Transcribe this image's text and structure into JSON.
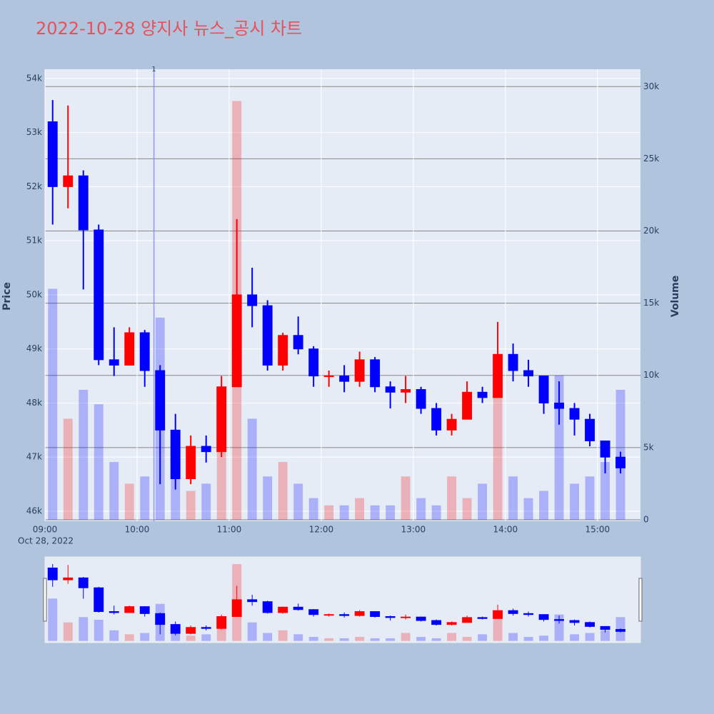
{
  "chart_data": {
    "type": "candlestick",
    "title": "2022-10-28 양지사 뉴스_공시 차트",
    "x_date_label": "Oct 28, 2022",
    "y_title": "Price",
    "y2_title": "Volume",
    "x": [
      "2022-10-28 09:00",
      "2022-10-28 09:10",
      "2022-10-28 09:20",
      "2022-10-28 09:30",
      "2022-10-28 09:40",
      "2022-10-28 09:50",
      "2022-10-28 10:00",
      "2022-10-28 10:10",
      "2022-10-28 10:20",
      "2022-10-28 10:30",
      "2022-10-28 10:40",
      "2022-10-28 10:50",
      "2022-10-28 11:00",
      "2022-10-28 11:10",
      "2022-10-28 11:20",
      "2022-10-28 11:30",
      "2022-10-28 11:40",
      "2022-10-28 11:50",
      "2022-10-28 12:00",
      "2022-10-28 12:10",
      "2022-10-28 12:20",
      "2022-10-28 12:30",
      "2022-10-28 12:40",
      "2022-10-28 12:50",
      "2022-10-28 13:00",
      "2022-10-28 13:10",
      "2022-10-28 13:20",
      "2022-10-28 13:30",
      "2022-10-28 13:40",
      "2022-10-28 13:50",
      "2022-10-28 14:00",
      "2022-10-28 14:10",
      "2022-10-28 14:20",
      "2022-10-28 14:30",
      "2022-10-28 14:40",
      "2022-10-28 14:50",
      "2022-10-28 15:00",
      "2022-10-28 15:10"
    ],
    "open": [
      53200,
      52000,
      52200,
      51200,
      48800,
      48700,
      49300,
      48600,
      47500,
      46600,
      47200,
      47100,
      48300,
      50000,
      49800,
      48700,
      49250,
      49000,
      48500,
      48500,
      48400,
      48800,
      48300,
      48200,
      48250,
      47900,
      47500,
      47700,
      48200,
      48100,
      48900,
      48600,
      48500,
      48000,
      47900,
      47700,
      47300,
      47000
    ],
    "high": [
      53600,
      53500,
      52300,
      51300,
      49400,
      49400,
      49350,
      48700,
      47800,
      47400,
      47400,
      48500,
      51400,
      50500,
      49900,
      49300,
      49600,
      49050,
      48600,
      48700,
      48950,
      48850,
      48400,
      48500,
      48300,
      48000,
      47800,
      48400,
      48300,
      49500,
      49100,
      48800,
      48500,
      48400,
      48000,
      47800,
      47300,
      47100
    ],
    "low": [
      51300,
      51600,
      50100,
      48700,
      48500,
      48700,
      48300,
      46500,
      46400,
      46500,
      46900,
      47000,
      48300,
      49400,
      48600,
      48600,
      48900,
      48300,
      48300,
      48200,
      48300,
      48200,
      47900,
      48000,
      47800,
      47400,
      47400,
      47700,
      48000,
      48100,
      48400,
      48300,
      47800,
      47600,
      47400,
      47200,
      46700,
      46700
    ],
    "close": [
      52000,
      52200,
      51200,
      48800,
      48700,
      49300,
      48600,
      47500,
      46600,
      47200,
      47100,
      48300,
      50000,
      49800,
      48700,
      49250,
      49000,
      48500,
      48500,
      48400,
      48800,
      48300,
      48200,
      48250,
      47900,
      47500,
      47700,
      48200,
      48100,
      48900,
      48600,
      48500,
      48000,
      47900,
      47700,
      47300,
      47000,
      46800
    ],
    "volume": [
      16000,
      7000,
      9000,
      8000,
      4000,
      2500,
      3000,
      14000,
      4000,
      2000,
      2500,
      5000,
      29000,
      7000,
      3000,
      4000,
      2500,
      1500,
      1000,
      1000,
      1500,
      1000,
      1000,
      3000,
      1500,
      1000,
      3000,
      1500,
      2500,
      10000,
      3000,
      1500,
      2000,
      10000,
      2500,
      3000,
      4000,
      9000
    ],
    "increasing_color": "#ff0000",
    "decreasing_color": "#0000ff",
    "xlim": [
      "2022-10-28 09:00",
      "2022-10-28 15:28"
    ],
    "xticks": [
      {
        "value": "2022-10-28 09:00",
        "label": "09:00"
      },
      {
        "value": "2022-10-28 10:00",
        "label": "10:00"
      },
      {
        "value": "2022-10-28 11:00",
        "label": "11:00"
      },
      {
        "value": "2022-10-28 12:00",
        "label": "12:00"
      },
      {
        "value": "2022-10-28 13:00",
        "label": "13:00"
      },
      {
        "value": "2022-10-28 14:00",
        "label": "14:00"
      },
      {
        "value": "2022-10-28 15:00",
        "label": "15:00"
      }
    ],
    "ylim": [
      45815,
      54170
    ],
    "yticks": [
      {
        "value": 46000,
        "label": "46k"
      },
      {
        "value": 47000,
        "label": "47k"
      },
      {
        "value": 48000,
        "label": "48k"
      },
      {
        "value": 49000,
        "label": "49k"
      },
      {
        "value": 50000,
        "label": "50k"
      },
      {
        "value": 51000,
        "label": "51k"
      },
      {
        "value": 52000,
        "label": "52k"
      },
      {
        "value": 53000,
        "label": "53k"
      },
      {
        "value": 54000,
        "label": "54k"
      }
    ],
    "y2lim": [
      -100,
      31200
    ],
    "y2ticks": [
      0,
      {
        "value": 5000,
        "label": "5k"
      },
      {
        "value": 10000,
        "label": "10k"
      },
      {
        "value": 15000,
        "label": "15k"
      },
      {
        "value": 20000,
        "label": "20k"
      },
      {
        "value": 25000,
        "label": "25k"
      },
      {
        "value": 30000,
        "label": "30k"
      }
    ],
    "grid": true,
    "y2grid": true,
    "news_markers": [
      {
        "x": "2022-10-28 10:11",
        "label": "1"
      }
    ],
    "rangeslider": true
  }
}
